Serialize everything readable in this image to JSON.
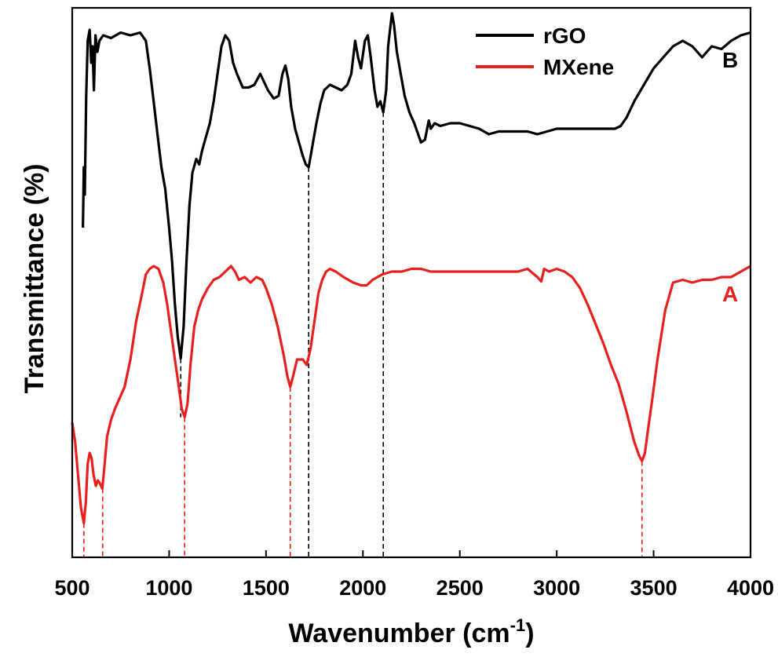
{
  "chart_data": {
    "type": "line",
    "title": "",
    "xlabel": "Wavenumber (cm",
    "xlabel_sup": "-1",
    "xlabel_end": ")",
    "ylabel": "Transmittance (%)",
    "xlim": [
      500,
      4000
    ],
    "ylim": [
      0,
      100
    ],
    "y_ticks_labeled": false,
    "x_ticks": [
      500,
      1000,
      1500,
      2000,
      2500,
      3000,
      3500,
      4000
    ],
    "x_tick_labels": [
      "500",
      "1000",
      "1500",
      "2000",
      "2500",
      "3000",
      "3500",
      "4000"
    ],
    "grid": false,
    "legend_position": "top-right",
    "series": [
      {
        "name": "rGO",
        "curve_label": "B",
        "color": "#000000",
        "points": [
          [
            555,
            60
          ],
          [
            560,
            71
          ],
          [
            565,
            66
          ],
          [
            572,
            84
          ],
          [
            580,
            94
          ],
          [
            590,
            96
          ],
          [
            598,
            90
          ],
          [
            605,
            93
          ],
          [
            612,
            85
          ],
          [
            620,
            95
          ],
          [
            630,
            92
          ],
          [
            640,
            94
          ],
          [
            660,
            95
          ],
          [
            700,
            94.5
          ],
          [
            750,
            95.5
          ],
          [
            800,
            95
          ],
          [
            850,
            95.5
          ],
          [
            880,
            94
          ],
          [
            900,
            89
          ],
          [
            920,
            83
          ],
          [
            940,
            77
          ],
          [
            960,
            71
          ],
          [
            980,
            67
          ],
          [
            1000,
            60
          ],
          [
            1015,
            54
          ],
          [
            1030,
            46
          ],
          [
            1045,
            40
          ],
          [
            1060,
            36.2
          ],
          [
            1075,
            42
          ],
          [
            1090,
            54
          ],
          [
            1105,
            64
          ],
          [
            1120,
            70
          ],
          [
            1140,
            72.5
          ],
          [
            1155,
            71.5
          ],
          [
            1170,
            74
          ],
          [
            1190,
            76.5
          ],
          [
            1210,
            79
          ],
          [
            1230,
            83
          ],
          [
            1250,
            88
          ],
          [
            1270,
            93
          ],
          [
            1290,
            95
          ],
          [
            1310,
            94
          ],
          [
            1330,
            90
          ],
          [
            1350,
            88
          ],
          [
            1380,
            85.5
          ],
          [
            1410,
            85.5
          ],
          [
            1440,
            86
          ],
          [
            1470,
            88
          ],
          [
            1490,
            86.5
          ],
          [
            1510,
            85
          ],
          [
            1540,
            83.5
          ],
          [
            1565,
            84
          ],
          [
            1585,
            88
          ],
          [
            1600,
            89.5
          ],
          [
            1615,
            87
          ],
          [
            1630,
            82
          ],
          [
            1650,
            78
          ],
          [
            1670,
            75.5
          ],
          [
            1690,
            73
          ],
          [
            1705,
            71.5
          ],
          [
            1720,
            71
          ],
          [
            1740,
            75
          ],
          [
            1760,
            79
          ],
          [
            1780,
            82.5
          ],
          [
            1800,
            85
          ],
          [
            1830,
            86
          ],
          [
            1860,
            85.5
          ],
          [
            1890,
            85
          ],
          [
            1920,
            86
          ],
          [
            1940,
            88
          ],
          [
            1960,
            94
          ],
          [
            1975,
            91
          ],
          [
            1990,
            89
          ],
          [
            2010,
            94
          ],
          [
            2025,
            95
          ],
          [
            2040,
            91
          ],
          [
            2060,
            85
          ],
          [
            2075,
            82
          ],
          [
            2090,
            83
          ],
          [
            2105,
            81
          ],
          [
            2120,
            85
          ],
          [
            2130,
            93
          ],
          [
            2140,
            96
          ],
          [
            2150,
            99
          ],
          [
            2160,
            97
          ],
          [
            2175,
            92
          ],
          [
            2195,
            88
          ],
          [
            2215,
            84
          ],
          [
            2240,
            81
          ],
          [
            2265,
            79
          ],
          [
            2285,
            77
          ],
          [
            2300,
            75.5
          ],
          [
            2320,
            76
          ],
          [
            2340,
            79.5
          ],
          [
            2350,
            78
          ],
          [
            2370,
            79
          ],
          [
            2400,
            78.5
          ],
          [
            2450,
            79
          ],
          [
            2500,
            79
          ],
          [
            2550,
            78.5
          ],
          [
            2600,
            78
          ],
          [
            2650,
            77
          ],
          [
            2700,
            77.5
          ],
          [
            2800,
            77.5
          ],
          [
            2850,
            77.5
          ],
          [
            2900,
            77
          ],
          [
            2950,
            77.5
          ],
          [
            3000,
            78
          ],
          [
            3100,
            78
          ],
          [
            3200,
            78
          ],
          [
            3300,
            78
          ],
          [
            3330,
            78.5
          ],
          [
            3360,
            80
          ],
          [
            3400,
            83
          ],
          [
            3450,
            86
          ],
          [
            3500,
            89
          ],
          [
            3550,
            91
          ],
          [
            3600,
            93
          ],
          [
            3650,
            94
          ],
          [
            3700,
            93
          ],
          [
            3750,
            91
          ],
          [
            3800,
            93
          ],
          [
            3850,
            92.5
          ],
          [
            3900,
            94
          ],
          [
            3950,
            95
          ],
          [
            4000,
            95.5
          ]
        ]
      },
      {
        "name": "MXene",
        "curve_label": "A",
        "color": "#e8201d",
        "points": [
          [
            500,
            24.5
          ],
          [
            515,
            21
          ],
          [
            530,
            15
          ],
          [
            545,
            9
          ],
          [
            560,
            6.2
          ],
          [
            570,
            10
          ],
          [
            580,
            17
          ],
          [
            590,
            19
          ],
          [
            600,
            18
          ],
          [
            610,
            15
          ],
          [
            622,
            13
          ],
          [
            632,
            14
          ],
          [
            642,
            13.5
          ],
          [
            655,
            12.5
          ],
          [
            665,
            16
          ],
          [
            680,
            22
          ],
          [
            700,
            25
          ],
          [
            720,
            27
          ],
          [
            745,
            29
          ],
          [
            770,
            31
          ],
          [
            800,
            36
          ],
          [
            830,
            43
          ],
          [
            860,
            48
          ],
          [
            880,
            51.5
          ],
          [
            900,
            52.5
          ],
          [
            920,
            53
          ],
          [
            945,
            52.5
          ],
          [
            970,
            50
          ],
          [
            990,
            46
          ],
          [
            1010,
            41
          ],
          [
            1030,
            36
          ],
          [
            1050,
            31
          ],
          [
            1065,
            27
          ],
          [
            1080,
            25.5
          ],
          [
            1095,
            28
          ],
          [
            1110,
            35
          ],
          [
            1130,
            42
          ],
          [
            1150,
            45
          ],
          [
            1170,
            47
          ],
          [
            1200,
            49
          ],
          [
            1230,
            50.5
          ],
          [
            1260,
            51
          ],
          [
            1290,
            52
          ],
          [
            1320,
            53
          ],
          [
            1340,
            52
          ],
          [
            1360,
            50.5
          ],
          [
            1390,
            51
          ],
          [
            1420,
            50
          ],
          [
            1450,
            51
          ],
          [
            1480,
            50.5
          ],
          [
            1500,
            49
          ],
          [
            1530,
            46
          ],
          [
            1560,
            42
          ],
          [
            1590,
            37
          ],
          [
            1610,
            33
          ],
          [
            1625,
            31
          ],
          [
            1640,
            33
          ],
          [
            1660,
            36
          ],
          [
            1690,
            36
          ],
          [
            1710,
            35
          ],
          [
            1730,
            38
          ],
          [
            1750,
            43
          ],
          [
            1770,
            48
          ],
          [
            1790,
            50.5
          ],
          [
            1810,
            52
          ],
          [
            1830,
            52.5
          ],
          [
            1860,
            52
          ],
          [
            1900,
            51
          ],
          [
            1950,
            50
          ],
          [
            1990,
            49.5
          ],
          [
            2020,
            49.5
          ],
          [
            2050,
            50.5
          ],
          [
            2100,
            51.5
          ],
          [
            2150,
            52
          ],
          [
            2200,
            52
          ],
          [
            2250,
            52.5
          ],
          [
            2300,
            52.5
          ],
          [
            2350,
            52
          ],
          [
            2400,
            52
          ],
          [
            2500,
            52
          ],
          [
            2600,
            52
          ],
          [
            2700,
            52
          ],
          [
            2800,
            52
          ],
          [
            2850,
            52.5
          ],
          [
            2900,
            51
          ],
          [
            2920,
            50.2
          ],
          [
            2935,
            52.5
          ],
          [
            2960,
            52
          ],
          [
            3000,
            52.5
          ],
          [
            3040,
            52
          ],
          [
            3080,
            51
          ],
          [
            3120,
            49
          ],
          [
            3160,
            46
          ],
          [
            3200,
            42.5
          ],
          [
            3240,
            39
          ],
          [
            3280,
            35
          ],
          [
            3320,
            31.5
          ],
          [
            3360,
            26.5
          ],
          [
            3400,
            21
          ],
          [
            3425,
            18.5
          ],
          [
            3440,
            17.5
          ],
          [
            3455,
            19
          ],
          [
            3470,
            23
          ],
          [
            3490,
            28
          ],
          [
            3520,
            36
          ],
          [
            3560,
            45
          ],
          [
            3600,
            50
          ],
          [
            3650,
            50.5
          ],
          [
            3700,
            50
          ],
          [
            3750,
            50.5
          ],
          [
            3800,
            50.5
          ],
          [
            3850,
            51
          ],
          [
            3900,
            51
          ],
          [
            3950,
            52
          ],
          [
            4000,
            53
          ]
        ]
      }
    ],
    "reference_lines": [
      {
        "x": 1060,
        "from": 36.2,
        "to": 25.5,
        "color": "#000000"
      },
      {
        "x": 1720,
        "from": 71,
        "to": 0,
        "color": "#000000"
      },
      {
        "x": 2105,
        "from": 81,
        "to": 0,
        "color": "#000000"
      },
      {
        "x": 560,
        "from": 6.2,
        "to": 0,
        "color": "#e8201d"
      },
      {
        "x": 657,
        "from": 12.5,
        "to": 0,
        "color": "#e8201d"
      },
      {
        "x": 1080,
        "from": 25.5,
        "to": 0,
        "color": "#e8201d"
      },
      {
        "x": 1625,
        "from": 31,
        "to": 0,
        "color": "#e8201d"
      },
      {
        "x": 3440,
        "from": 17.5,
        "to": 0,
        "color": "#e8201d"
      }
    ]
  }
}
